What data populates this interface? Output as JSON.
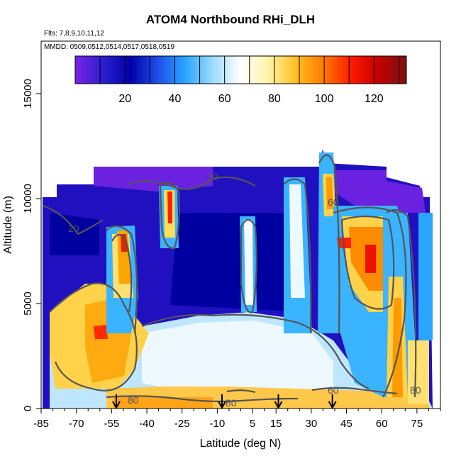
{
  "chart_data": {
    "type": "heatmap",
    "title": "ATOM4 Northbound RHi_DLH",
    "flights_note": "Flts: 7,8,9,10,11,12",
    "dates_note": "MMDD: 0509,0512,0514,0517,0518,0519",
    "xlabel": "Latitude (deg N)",
    "ylabel": "Altitude (m)",
    "xlim": [
      -85,
      85
    ],
    "ylim": [
      0,
      17500
    ],
    "x_tick_labels": [
      "-85",
      "-70",
      "-55",
      "-40",
      "-25",
      "-10",
      "5",
      "15",
      "30",
      "45",
      "60",
      "75"
    ],
    "x_tick_values": [
      -85,
      -70,
      -55,
      -40,
      -25,
      -10,
      5,
      15,
      30,
      45,
      60,
      75
    ],
    "y_tick_labels": [
      "0",
      "5000",
      "10000",
      "15000"
    ],
    "y_tick_values": [
      0,
      5000,
      10000,
      15000
    ],
    "colorbar": {
      "range": [
        0,
        133
      ],
      "tick_labels": [
        "20",
        "40",
        "60",
        "80",
        "100",
        "120"
      ],
      "tick_values": [
        20,
        40,
        60,
        80,
        100,
        120
      ],
      "colors": [
        "#7a22e6",
        "#2b1fd0",
        "#0000a8",
        "#1f4fe8",
        "#2aa6ff",
        "#9fdcff",
        "#ffffff",
        "#fff3a8",
        "#ffc020",
        "#ff7a00",
        "#ff1a00",
        "#c40000",
        "#7a1010"
      ]
    },
    "contour_labels": [
      "20",
      "20",
      "60",
      "60",
      "80",
      "80",
      "80"
    ],
    "flight_arrows_lat": [
      -53,
      -8,
      16,
      39
    ],
    "regions_rhi": {
      "upper_troposphere_bg": 10,
      "southern_midlat_lowlevel": 100,
      "southern_upwelling_core": 120,
      "tropical_lowlevel": 75,
      "tropical_near_surface": 98,
      "northern_midlat_core": 110,
      "northern_column": 95
    }
  }
}
